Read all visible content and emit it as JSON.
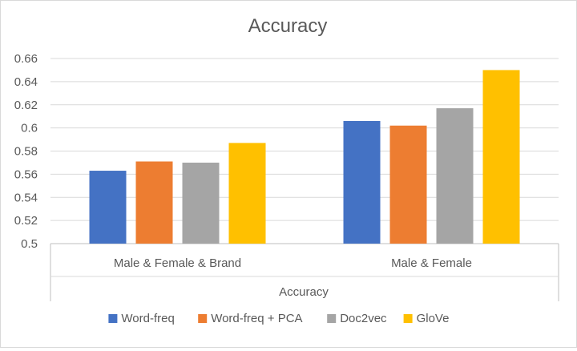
{
  "chart_data": {
    "type": "bar",
    "title": "Accuracy",
    "xlabel": "Accuracy",
    "ylabel": "",
    "categories": [
      "Male & Female & Brand",
      "Male & Female"
    ],
    "series": [
      {
        "name": "Word-freq",
        "values": [
          0.563,
          0.606
        ],
        "color": "#4472C4"
      },
      {
        "name": "Word-freq + PCA",
        "values": [
          0.571,
          0.602
        ],
        "color": "#ED7D31"
      },
      {
        "name": "Doc2vec",
        "values": [
          0.57,
          0.617
        ],
        "color": "#A5A5A5"
      },
      {
        "name": "GloVe",
        "values": [
          0.587,
          0.65
        ],
        "color": "#FFC000"
      }
    ],
    "ylim": [
      0.5,
      0.66
    ],
    "yticks": [
      "0.5",
      "0.52",
      "0.54",
      "0.56",
      "0.58",
      "0.6",
      "0.62",
      "0.64",
      "0.66"
    ],
    "grid": true,
    "legend_position": "bottom"
  }
}
